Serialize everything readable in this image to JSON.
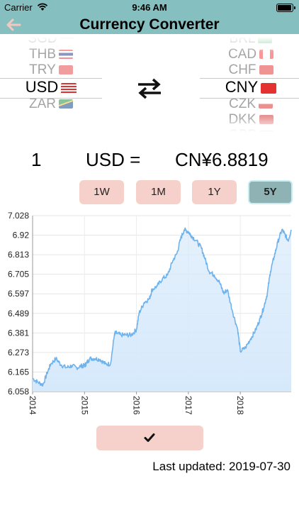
{
  "status_bar": {
    "carrier": "Carrier",
    "time": "9:46 AM",
    "icons": [
      "wifi-icon",
      "battery-icon"
    ]
  },
  "nav": {
    "title": "Currency Converter",
    "back_icon": "arrow-left-icon"
  },
  "picker_from": {
    "items": [
      {
        "code": "SGD",
        "flag": "flag-singapore"
      },
      {
        "code": "THB",
        "flag": "flag-thailand"
      },
      {
        "code": "TRY",
        "flag": "flag-turkey"
      },
      {
        "code": "USD",
        "flag": "flag-usa",
        "selected": true
      },
      {
        "code": "ZAR",
        "flag": "flag-south-africa"
      }
    ]
  },
  "picker_to": {
    "items": [
      {
        "code": "BRL",
        "flag": "flag-brazil"
      },
      {
        "code": "CAD",
        "flag": "flag-canada"
      },
      {
        "code": "CHF",
        "flag": "flag-switzerland"
      },
      {
        "code": "CNY",
        "flag": "flag-china",
        "selected": true
      },
      {
        "code": "CZK",
        "flag": "flag-czech"
      },
      {
        "code": "DKK",
        "flag": "flag-denmark"
      },
      {
        "code": "GBP",
        "flag": "flag-uk"
      }
    ]
  },
  "swap_icon": "swap-arrows-icon",
  "conversion": {
    "amount": "1",
    "from": "USD =",
    "result": "CN¥6.8819"
  },
  "ranges": [
    {
      "label": "1W",
      "active": false
    },
    {
      "label": "1M",
      "active": false
    },
    {
      "label": "1Y",
      "active": false
    },
    {
      "label": "5Y",
      "active": true
    }
  ],
  "colors": {
    "header": "#86bfc0",
    "button": "#f6d0cb",
    "button_active": "#8fb2b4",
    "line": "#6fb3ee",
    "fill": "#d6e9fb"
  },
  "chart_data": {
    "type": "area",
    "y_ticks": [
      "7.028",
      "6.92",
      "6.813",
      "6.705",
      "6.597",
      "6.489",
      "6.381",
      "6.273",
      "6.165",
      "6.058"
    ],
    "ylim": [
      6.058,
      7.028
    ],
    "x_ticks": [
      "2014",
      "2015",
      "2016",
      "2017",
      "2018"
    ],
    "xlim": [
      2014.0,
      2018.98
    ],
    "grid": true,
    "series": [
      {
        "x": [
          2014.0,
          2014.1,
          2014.2,
          2014.28,
          2014.35,
          2014.45,
          2014.55,
          2014.65,
          2014.75,
          2014.85,
          2014.95,
          2015.0,
          2015.04,
          2015.1,
          2015.2,
          2015.3,
          2015.4,
          2015.5,
          2015.58,
          2015.62,
          2015.7,
          2015.8,
          2015.9,
          2016.0,
          2016.05,
          2016.15,
          2016.25,
          2016.3,
          2016.4,
          2016.5,
          2016.6,
          2016.7,
          2016.78,
          2016.85,
          2016.92,
          2017.0,
          2017.05,
          2017.15,
          2017.25,
          2017.32,
          2017.4,
          2017.5,
          2017.6,
          2017.68,
          2017.75,
          2017.85,
          2017.95,
          2018.0,
          2018.1,
          2018.2,
          2018.3,
          2018.38,
          2018.45,
          2018.52,
          2018.58,
          2018.65,
          2018.72,
          2018.8,
          2018.85,
          2018.92,
          2018.98
        ],
        "y": [
          6.13,
          6.11,
          6.095,
          6.16,
          6.21,
          6.24,
          6.205,
          6.19,
          6.2,
          6.19,
          6.2,
          6.2,
          6.215,
          6.24,
          6.24,
          6.235,
          6.21,
          6.21,
          6.38,
          6.38,
          6.37,
          6.37,
          6.37,
          6.4,
          6.49,
          6.55,
          6.57,
          6.62,
          6.64,
          6.68,
          6.7,
          6.78,
          6.82,
          6.9,
          6.95,
          6.94,
          6.92,
          6.89,
          6.85,
          6.79,
          6.72,
          6.7,
          6.66,
          6.6,
          6.62,
          6.5,
          6.4,
          6.28,
          6.3,
          6.35,
          6.4,
          6.46,
          6.52,
          6.6,
          6.72,
          6.8,
          6.88,
          6.95,
          6.93,
          6.89,
          6.95
        ]
      }
    ]
  },
  "confirm_icon": "checkmark-icon",
  "last_updated": "Last updated: 2019-07-30"
}
